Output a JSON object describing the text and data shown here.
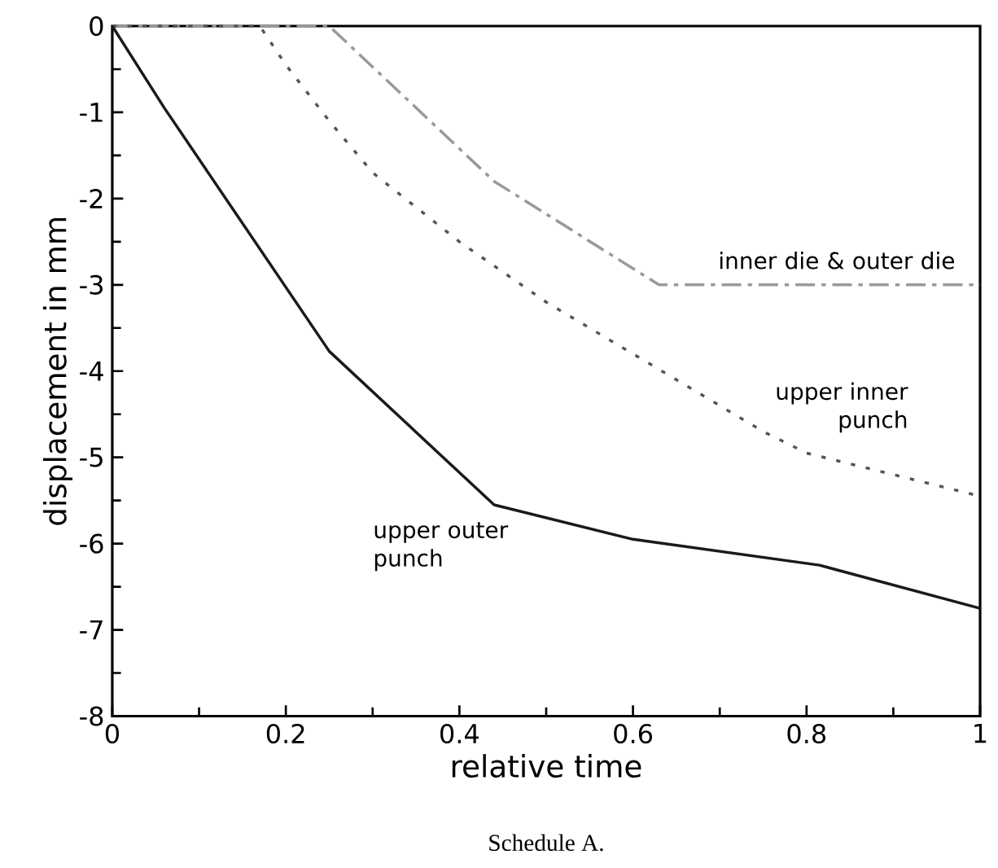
{
  "chart_data": {
    "type": "line",
    "xlabel": "relative time",
    "ylabel": "displacement in mm",
    "annotations": [
      "Schedule A."
    ],
    "xlim": [
      0,
      1
    ],
    "ylim": [
      -8,
      0
    ],
    "xticks": [
      0,
      0.2,
      0.4,
      0.6,
      0.8,
      1
    ],
    "yticks": [
      -8,
      -7,
      -6,
      -5,
      -4,
      -3,
      -2,
      -1,
      0
    ],
    "grid": false,
    "legend": false,
    "marker": "none",
    "series": [
      {
        "name": "inner die & outer die",
        "color": "#999999",
        "line_style": "dashed",
        "x": [
          0,
          0.25,
          0.44,
          0.63,
          1
        ],
        "values": [
          0,
          0,
          -1.8,
          -3,
          -3
        ]
      },
      {
        "name": "upper inner punch",
        "color": "#555555",
        "line_style": "dotted",
        "x": [
          0,
          0.17,
          0.2,
          0.25,
          0.3,
          0.35,
          0.4,
          0.45,
          0.5,
          0.55,
          0.6,
          0.65,
          0.7,
          0.75,
          0.8,
          0.9,
          1
        ],
        "values": [
          0,
          0,
          -0.45,
          -1.1,
          -1.7,
          -2.1,
          -2.5,
          -2.85,
          -3.2,
          -3.5,
          -3.8,
          -4.1,
          -4.4,
          -4.7,
          -4.95,
          -5.2,
          -5.45
        ]
      },
      {
        "name": "upper outer punch",
        "color": "#1a1a1a",
        "line_style": "solid",
        "x": [
          0,
          0.06,
          0.25,
          0.44,
          0.6,
          0.815,
          1
        ],
        "values": [
          0,
          -0.95,
          -3.77,
          -5.55,
          -5.95,
          -6.25,
          -6.75
        ]
      }
    ]
  }
}
